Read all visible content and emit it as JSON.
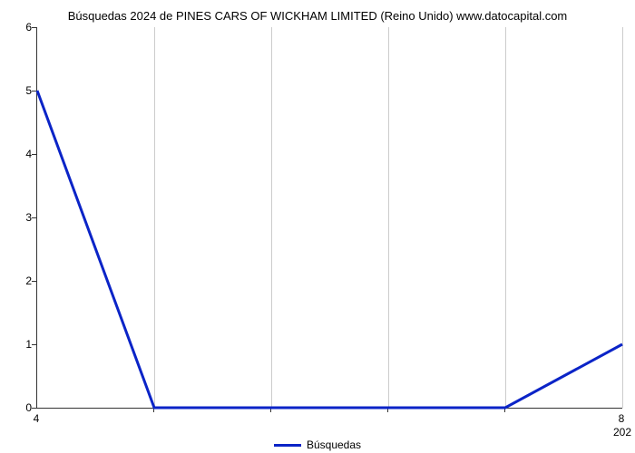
{
  "chart": {
    "type": "line",
    "title": "Búsquedas 2024 de PINES CARS OF WICKHAM LIMITED (Reino Unido) www.datocapital.com",
    "title_fontsize": 13,
    "background_color": "#ffffff",
    "grid_color": "#cccccc",
    "axis_color": "#333333",
    "text_color": "#000000",
    "xlim": [
      4,
      8
    ],
    "ylim": [
      0,
      6
    ],
    "y_ticks": [
      0,
      1,
      2,
      3,
      4,
      5,
      6
    ],
    "x_ticks_major": [
      4,
      8
    ],
    "x_ticks_minor_count": 5,
    "x_secondary_label": "202",
    "series": {
      "label": "Búsquedas",
      "color": "#0b24c7",
      "line_width": 3,
      "x_values": [
        4.0,
        4.8,
        5.6,
        6.4,
        7.2,
        8.0
      ],
      "y_values": [
        5.0,
        0.0,
        0.0,
        0.0,
        0.0,
        1.0
      ]
    },
    "legend_position": "bottom-center",
    "label_fontsize": 12
  }
}
